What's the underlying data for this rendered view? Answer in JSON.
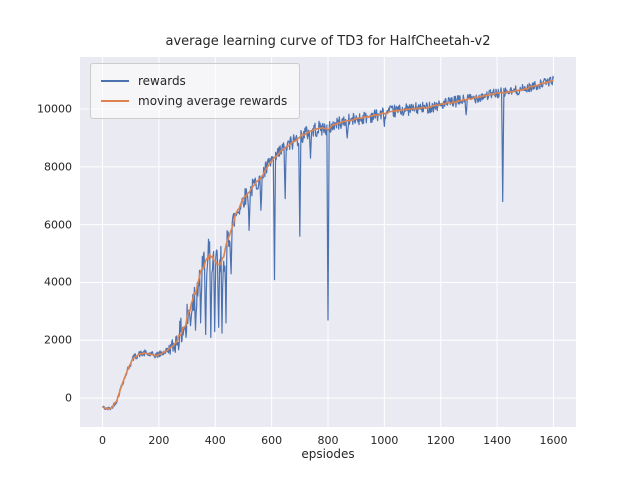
{
  "figure": {
    "title": "average learning curve of TD3 for HalfCheetah-v2",
    "xlabel": "epsiodes"
  },
  "legend": {
    "items": [
      {
        "label": "rewards",
        "color": "#4C72B0"
      },
      {
        "label": "moving average rewards",
        "color": "#DD8452"
      }
    ]
  },
  "colors": {
    "figure_background": "#FFFFFF",
    "axes_background": "#EAEAF2",
    "grid": "#FFFFFF",
    "text": "#262626"
  },
  "chart_data": {
    "type": "line",
    "title": "average learning curve of TD3 for HalfCheetah-v2",
    "xlabel": "epsiodes",
    "ylabel": "",
    "xlim": [
      -80,
      1680
    ],
    "ylim": [
      -1000,
      11800
    ],
    "xticks": [
      0,
      200,
      400,
      600,
      800,
      1000,
      1200,
      1400,
      1600
    ],
    "yticks": [
      0,
      2000,
      4000,
      6000,
      8000,
      10000
    ],
    "grid": true,
    "legend_position": "upper left",
    "series": [
      {
        "name": "rewards",
        "color": "#4C72B0",
        "style": "noisy-around-moving-average",
        "noise_halfband_profile": [
          [
            0,
            60
          ],
          [
            50,
            80
          ],
          [
            100,
            110
          ],
          [
            230,
            120
          ],
          [
            255,
            350
          ],
          [
            290,
            600
          ],
          [
            330,
            700
          ],
          [
            420,
            700
          ],
          [
            455,
            450
          ],
          [
            500,
            320
          ],
          [
            600,
            300
          ],
          [
            700,
            280
          ],
          [
            790,
            260
          ],
          [
            820,
            230
          ],
          [
            1000,
            220
          ],
          [
            1200,
            200
          ],
          [
            1400,
            180
          ],
          [
            1600,
            150
          ]
        ],
        "dip_spikes": [
          [
            295,
            2100
          ],
          [
            312,
            2500
          ],
          [
            330,
            2350
          ],
          [
            348,
            2600
          ],
          [
            365,
            2200
          ],
          [
            383,
            2100
          ],
          [
            398,
            2300
          ],
          [
            412,
            2450
          ],
          [
            424,
            2250
          ],
          [
            438,
            2600
          ],
          [
            455,
            4300
          ],
          [
            520,
            5800
          ],
          [
            562,
            6500
          ],
          [
            610,
            4100
          ],
          [
            648,
            6900
          ],
          [
            700,
            5600
          ],
          [
            738,
            8300
          ],
          [
            800,
            2700
          ],
          [
            868,
            9000
          ],
          [
            1000,
            9400
          ],
          [
            1290,
            9800
          ],
          [
            1420,
            6800
          ]
        ]
      },
      {
        "name": "moving average rewards",
        "color": "#DD8452",
        "noise_halfband_profile": [
          [
            0,
            10
          ],
          [
            250,
            20
          ],
          [
            280,
            120
          ],
          [
            320,
            150
          ],
          [
            450,
            120
          ],
          [
            480,
            40
          ],
          [
            600,
            30
          ],
          [
            1600,
            25
          ]
        ],
        "points": [
          [
            0,
            -300
          ],
          [
            15,
            -380
          ],
          [
            30,
            -350
          ],
          [
            50,
            -100
          ],
          [
            70,
            500
          ],
          [
            90,
            1000
          ],
          [
            110,
            1400
          ],
          [
            130,
            1520
          ],
          [
            150,
            1550
          ],
          [
            170,
            1500
          ],
          [
            190,
            1480
          ],
          [
            210,
            1550
          ],
          [
            230,
            1650
          ],
          [
            250,
            1800
          ],
          [
            270,
            2100
          ],
          [
            290,
            2500
          ],
          [
            310,
            3000
          ],
          [
            330,
            3700
          ],
          [
            350,
            4300
          ],
          [
            370,
            4700
          ],
          [
            385,
            5000
          ],
          [
            400,
            4700
          ],
          [
            415,
            4500
          ],
          [
            430,
            4900
          ],
          [
            445,
            5500
          ],
          [
            460,
            6000
          ],
          [
            480,
            6500
          ],
          [
            500,
            6900
          ],
          [
            520,
            7100
          ],
          [
            540,
            7400
          ],
          [
            560,
            7600
          ],
          [
            580,
            7900
          ],
          [
            600,
            8200
          ],
          [
            620,
            8400
          ],
          [
            640,
            8600
          ],
          [
            660,
            8750
          ],
          [
            680,
            8900
          ],
          [
            700,
            9050
          ],
          [
            720,
            9150
          ],
          [
            740,
            9250
          ],
          [
            760,
            9300
          ],
          [
            780,
            9350
          ],
          [
            800,
            9300
          ],
          [
            820,
            9450
          ],
          [
            850,
            9550
          ],
          [
            900,
            9650
          ],
          [
            950,
            9750
          ],
          [
            1000,
            9850
          ],
          [
            1050,
            9950
          ],
          [
            1100,
            10000
          ],
          [
            1150,
            10050
          ],
          [
            1200,
            10150
          ],
          [
            1250,
            10250
          ],
          [
            1300,
            10350
          ],
          [
            1350,
            10450
          ],
          [
            1400,
            10550
          ],
          [
            1450,
            10600
          ],
          [
            1500,
            10700
          ],
          [
            1550,
            10850
          ],
          [
            1600,
            11000
          ]
        ]
      }
    ]
  }
}
